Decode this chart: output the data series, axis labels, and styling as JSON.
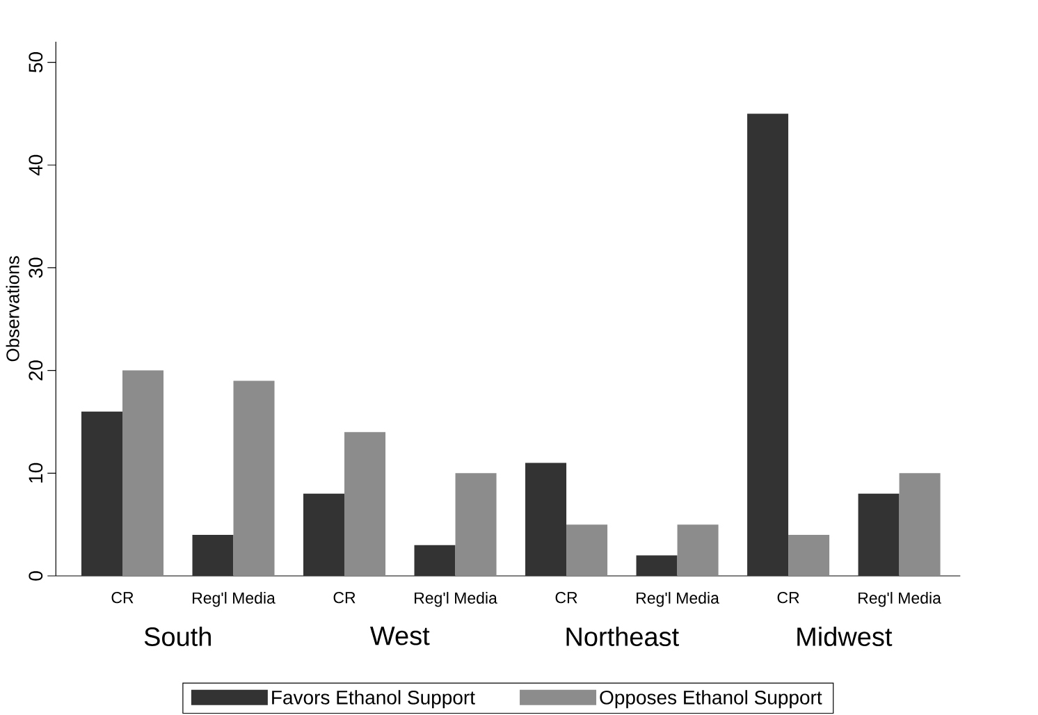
{
  "chart_data": {
    "type": "bar",
    "ylabel": "Observations",
    "categories": [
      "CR",
      "Reg'l Media",
      "CR",
      "Reg'l Media",
      "CR",
      "Reg'l Media",
      "CR",
      "Reg'l Media"
    ],
    "series": [
      {
        "name": "Favors Ethanol Support",
        "color": "#333333",
        "values": [
          16,
          4,
          8,
          3,
          11,
          2,
          45,
          8
        ]
      },
      {
        "name": "Opposes Ethanol Support",
        "color": "#8c8c8c",
        "values": [
          20,
          19,
          14,
          10,
          5,
          5,
          4,
          10
        ]
      }
    ],
    "annotations": [
      "South",
      "West",
      "Northeast",
      "Midwest"
    ],
    "ylim": [
      0,
      52
    ],
    "yticks": [
      0,
      10,
      20,
      30,
      40,
      50
    ],
    "grid": false,
    "legend": "bottom"
  }
}
